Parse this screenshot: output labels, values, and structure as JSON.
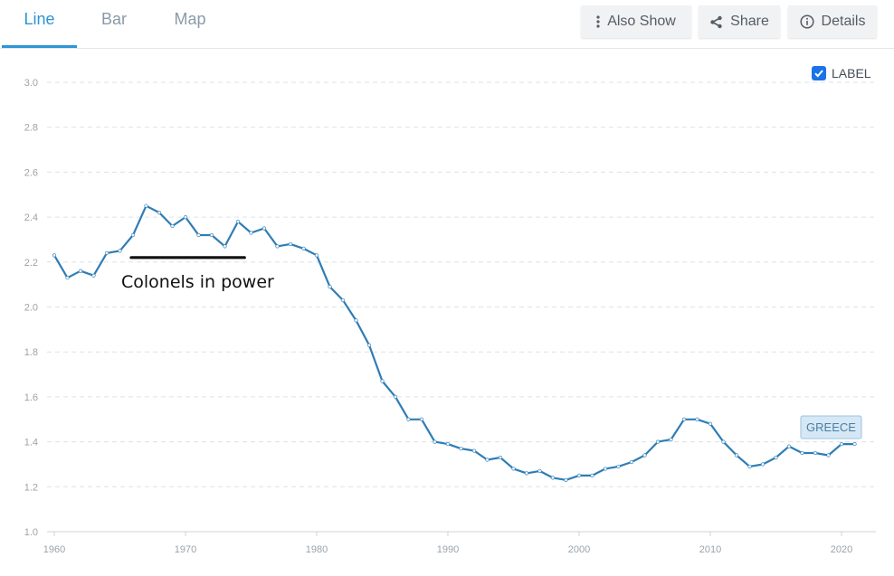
{
  "tabs": [
    {
      "label": "Line",
      "active": true
    },
    {
      "label": "Bar",
      "active": false
    },
    {
      "label": "Map",
      "active": false
    }
  ],
  "toolbar": {
    "also_show_label": "Also Show",
    "share_label": "Share",
    "details_label": "Details"
  },
  "label_toggle": {
    "label": "LABEL",
    "checked": true
  },
  "chart_data": {
    "type": "line",
    "title": "",
    "xlabel": "",
    "ylabel": "",
    "ylim": [
      1.0,
      3.0
    ],
    "xlim": [
      1960,
      2021
    ],
    "yticks": [
      "3.0",
      "2.8",
      "2.6",
      "2.4",
      "2.2",
      "2.0",
      "1.8",
      "1.6",
      "1.4",
      "1.2",
      "1.0"
    ],
    "xticks": [
      "1960",
      "1970",
      "1980",
      "1990",
      "2000",
      "2010",
      "2020"
    ],
    "grid": true,
    "line_color": "#2e7db5",
    "series": [
      {
        "name": "GREECE",
        "x": [
          1960,
          1961,
          1962,
          1963,
          1964,
          1965,
          1966,
          1967,
          1968,
          1969,
          1970,
          1971,
          1972,
          1973,
          1974,
          1975,
          1976,
          1977,
          1978,
          1979,
          1980,
          1981,
          1982,
          1983,
          1984,
          1985,
          1986,
          1987,
          1988,
          1989,
          1990,
          1991,
          1992,
          1993,
          1994,
          1995,
          1996,
          1997,
          1998,
          1999,
          2000,
          2001,
          2002,
          2003,
          2004,
          2005,
          2006,
          2007,
          2008,
          2009,
          2010,
          2011,
          2012,
          2013,
          2014,
          2015,
          2016,
          2017,
          2018,
          2019,
          2020,
          2021
        ],
        "y": [
          2.23,
          2.13,
          2.16,
          2.14,
          2.24,
          2.25,
          2.32,
          2.45,
          2.42,
          2.36,
          2.4,
          2.32,
          2.32,
          2.27,
          2.38,
          2.33,
          2.35,
          2.27,
          2.28,
          2.26,
          2.23,
          2.09,
          2.03,
          1.94,
          1.83,
          1.67,
          1.6,
          1.5,
          1.5,
          1.4,
          1.39,
          1.37,
          1.36,
          1.32,
          1.33,
          1.28,
          1.26,
          1.27,
          1.24,
          1.23,
          1.25,
          1.25,
          1.28,
          1.29,
          1.31,
          1.34,
          1.4,
          1.41,
          1.5,
          1.5,
          1.48,
          1.4,
          1.34,
          1.29,
          1.3,
          1.33,
          1.38,
          1.35,
          1.35,
          1.34,
          1.39,
          1.39
        ]
      }
    ],
    "annotations": [
      {
        "text": "Colonels in power",
        "x_start": 1966,
        "x_end": 1974.5,
        "y": 2.22
      }
    ]
  }
}
